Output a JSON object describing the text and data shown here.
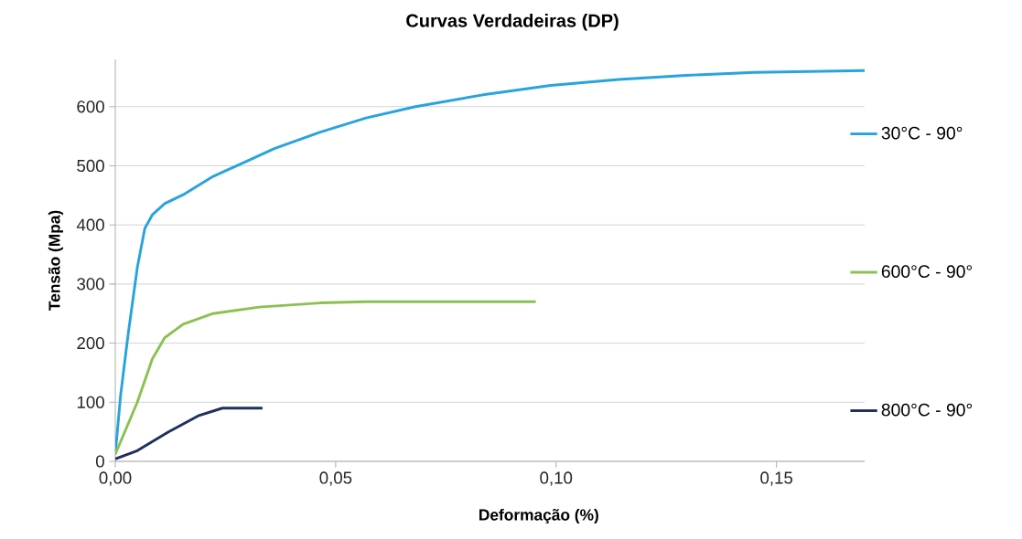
{
  "chart_data": {
    "type": "line",
    "title": "Curvas Verdadeiras (DP)",
    "xlabel": "Deformação (%)",
    "ylabel": "Tensão (Mpa)",
    "xlim": [
      0,
      0.17
    ],
    "ylim": [
      0,
      680
    ],
    "xticks": [
      {
        "value": 0,
        "label": "0,00"
      },
      {
        "value": 0.05,
        "label": "0,05"
      },
      {
        "value": 0.1,
        "label": "0,10"
      },
      {
        "value": 0.15,
        "label": "0,15"
      }
    ],
    "yticks": [
      0,
      100,
      200,
      300,
      400,
      500,
      600
    ],
    "grid": "y",
    "legend": "right",
    "marker": "none",
    "line_style": "solid",
    "series": [
      {
        "name": "30°C - 90°",
        "color": "#29a3dd",
        "x": [
          0,
          0.0012,
          0.0029,
          0.005,
          0.0067,
          0.0084,
          0.0112,
          0.0154,
          0.0222,
          0.0293,
          0.0361,
          0.0465,
          0.0569,
          0.0681,
          0.0834,
          0.0988,
          0.1142,
          0.1295,
          0.1449,
          0.17
        ],
        "values": [
          12,
          111,
          214,
          328,
          394,
          417,
          436,
          451,
          482,
          506,
          529,
          557,
          581,
          600,
          620,
          636,
          646,
          653,
          658,
          661
        ]
      },
      {
        "name": "600°C - 90°",
        "color": "#8bc152",
        "x": [
          0,
          0.005,
          0.0084,
          0.0112,
          0.0154,
          0.0222,
          0.0327,
          0.0465,
          0.0569,
          0.0954
        ],
        "values": [
          12,
          100,
          173,
          209,
          232,
          250,
          261,
          268,
          270,
          270
        ]
      },
      {
        "name": "800°C - 90°",
        "color": "#1f2f5e",
        "x": [
          0,
          0.005,
          0.0119,
          0.0188,
          0.0243,
          0.0334
        ],
        "values": [
          4,
          18,
          49,
          77,
          90,
          90
        ]
      }
    ]
  }
}
